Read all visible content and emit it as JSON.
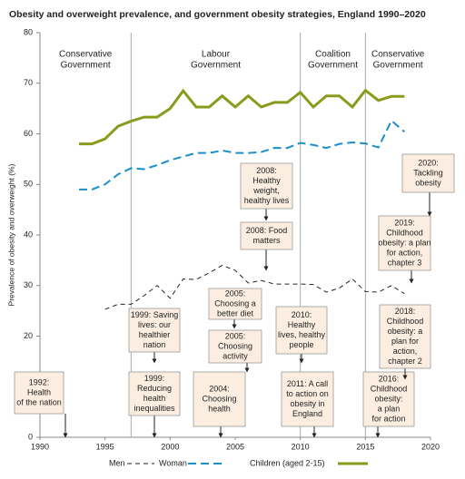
{
  "chart_data": {
    "type": "line",
    "title": "Obesity and overweight prevalence, and government obesity strategies, England 1990–2020",
    "y_label": "Prevalence of obesity and overweight (%)",
    "x": [
      1993,
      1994,
      1995,
      1996,
      1997,
      1998,
      1999,
      2000,
      2001,
      2002,
      2003,
      2004,
      2005,
      2006,
      2007,
      2008,
      2009,
      2010,
      2011,
      2012,
      2013,
      2014,
      2015,
      2016,
      2017,
      2018
    ],
    "series": [
      {
        "name": "Men",
        "color": "#222222",
        "style": "dashed",
        "values": [
          null,
          null,
          25.3,
          26.3,
          26.3,
          28,
          30,
          27.5,
          31.3,
          31.2,
          32.5,
          34,
          33,
          30.5,
          31,
          30.3,
          30.3,
          30.3,
          30.2,
          28.7,
          29.5,
          31.3,
          28.8,
          28.7,
          30,
          28.4
        ]
      },
      {
        "name": "Woman",
        "color": "#1a8fc9",
        "style": "dashed",
        "values": [
          49,
          49,
          50,
          52,
          53.2,
          53,
          53.8,
          54.8,
          55.5,
          56.2,
          56.2,
          56.7,
          56.2,
          56.2,
          56.4,
          57.2,
          57.2,
          58.2,
          57.8,
          57.2,
          58,
          58.3,
          58.1,
          57.3,
          62.6,
          60.4
        ]
      },
      {
        "name": "Children (aged 2-15)",
        "color": "#8a9a1b",
        "style": "solid",
        "values": [
          58,
          58,
          59,
          61.5,
          62.5,
          63.3,
          63.3,
          65,
          68.5,
          65.3,
          65.3,
          67.5,
          65.3,
          67.5,
          65.3,
          66.2,
          66.2,
          68.2,
          65.3,
          67.5,
          67.5,
          65.3,
          68.6,
          66.6,
          67.4,
          67.4
        ]
      }
    ],
    "xlim": [
      1990,
      2020
    ],
    "xticks": [
      1990,
      1995,
      2000,
      2005,
      2010,
      2015,
      2020
    ],
    "ylim": [
      0,
      80
    ],
    "yticks": [
      0,
      10,
      20,
      30,
      40,
      50,
      60,
      70,
      80
    ],
    "governments": [
      {
        "lines": [
          "Conservative",
          "Government"
        ],
        "from": 1990,
        "to": 1997
      },
      {
        "lines": [
          "Labour",
          "Government"
        ],
        "from": 1997,
        "to": 2010
      },
      {
        "lines": [
          "Coalition",
          "Government"
        ],
        "from": 2010,
        "to": 2015
      },
      {
        "lines": [
          "Conservative",
          "Government"
        ],
        "from": 2015,
        "to": 2020
      }
    ],
    "annotations": [
      {
        "lines": [
          "1992:",
          "Health",
          "of the nation"
        ]
      },
      {
        "lines": [
          "1999: Saving",
          "lives: our",
          "healthier",
          "nation"
        ]
      },
      {
        "lines": [
          "1999:",
          "Reducing",
          "health",
          "inequalities"
        ]
      },
      {
        "lines": [
          "2005:",
          "Choosing a",
          "better diet"
        ]
      },
      {
        "lines": [
          "2005:",
          "Choosing",
          "activity"
        ]
      },
      {
        "lines": [
          "2004:",
          "Choosing",
          "health"
        ]
      },
      {
        "lines": [
          "2008:",
          "Healthy",
          "weight,",
          "healthy lives"
        ]
      },
      {
        "lines": [
          "2008: Food",
          "matters"
        ]
      },
      {
        "lines": [
          "2010:",
          "Healthy",
          "lives, healthy",
          "people"
        ]
      },
      {
        "lines": [
          "2011: A call",
          "to action on",
          "obesity in",
          "England"
        ]
      },
      {
        "lines": [
          "2016:",
          "Childhood",
          "obesity:",
          "a plan",
          "for action"
        ]
      },
      {
        "lines": [
          "2018:",
          "Childhood",
          "obesity: a",
          "plan for",
          "action,",
          "chapter 2"
        ]
      },
      {
        "lines": [
          "2019:",
          "Childhood",
          "obesity: a plan",
          "for action,",
          "chapter 3"
        ]
      },
      {
        "lines": [
          "2020:",
          "Tackling",
          "obesity"
        ]
      }
    ]
  }
}
